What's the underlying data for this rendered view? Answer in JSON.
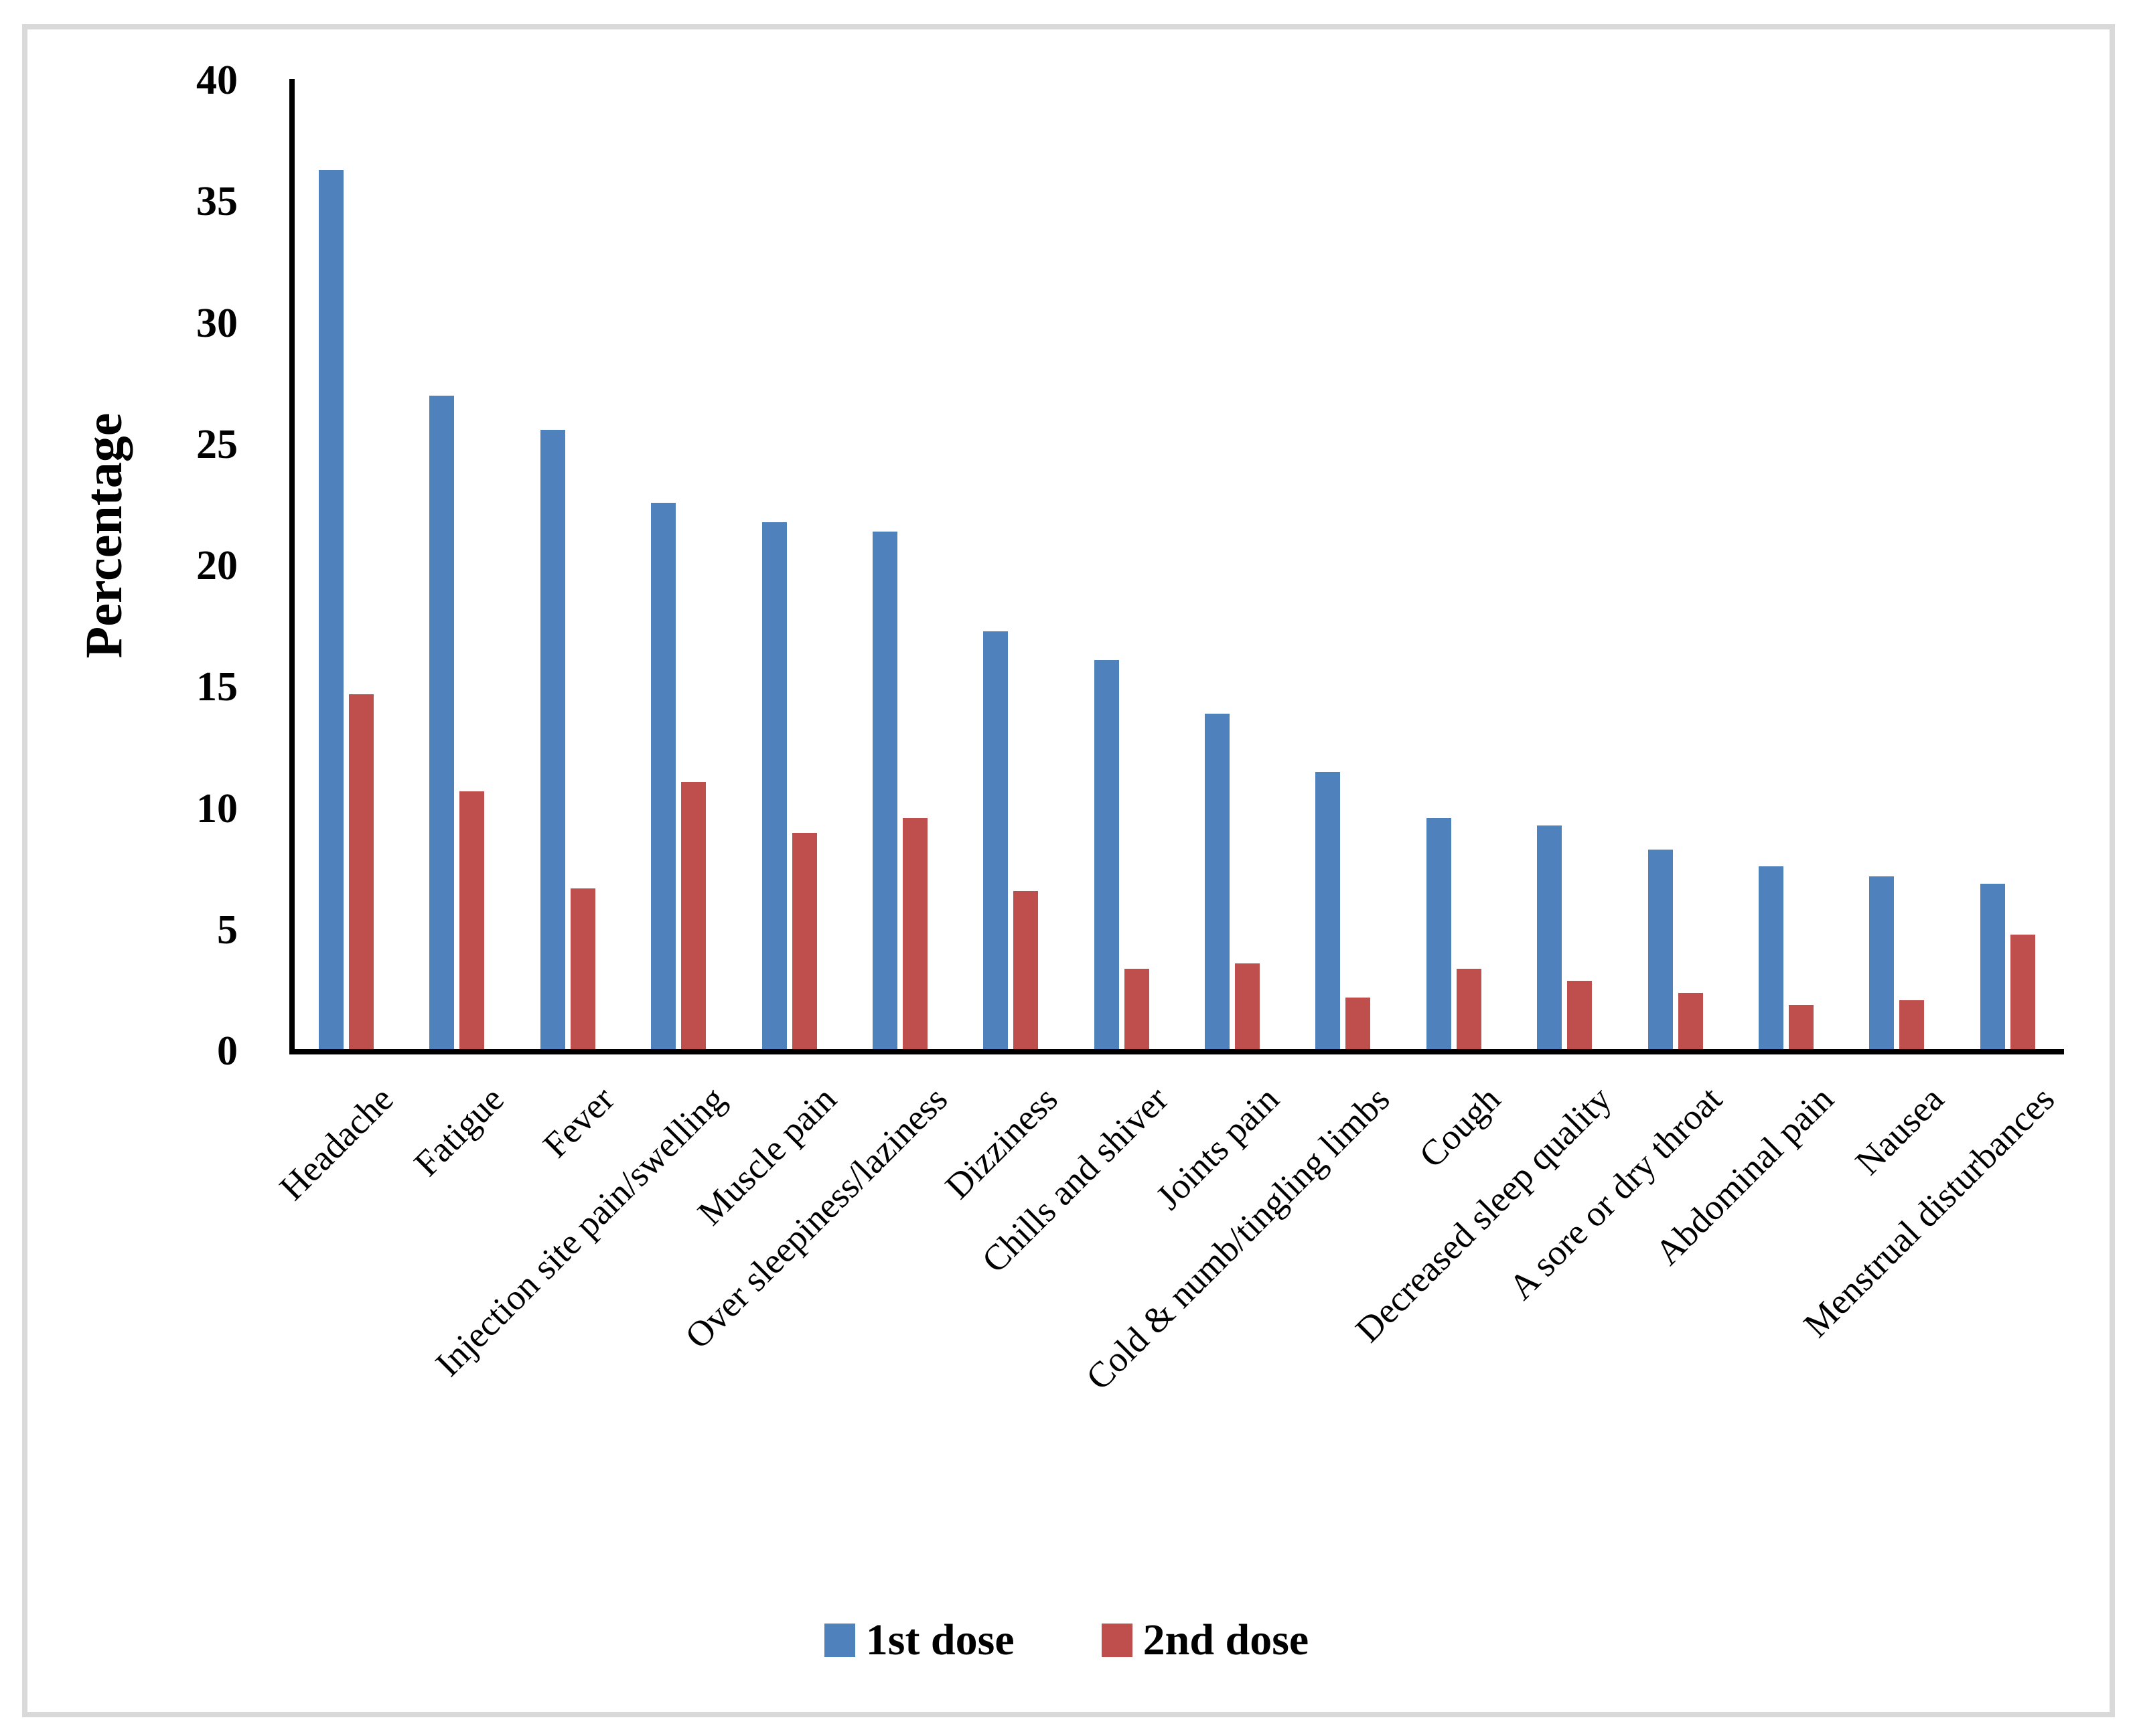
{
  "chart_data": {
    "type": "bar",
    "title": "",
    "xlabel": "",
    "ylabel": "Percentage",
    "ylim": [
      0,
      40
    ],
    "yticks": [
      0,
      5,
      10,
      15,
      20,
      25,
      30,
      35,
      40
    ],
    "grid": false,
    "legend_position": "bottom",
    "categories": [
      "Headache",
      "Fatigue",
      "Fever",
      "Injection site pain/swelling",
      "Muscle pain",
      "Over sleepiness/laziness",
      "Dizziness",
      "Chills and shiver",
      "Joints pain",
      "Cold & numb/tingling limbs",
      "Cough",
      "Decreased sleep quality",
      "A sore or dry throat",
      "Abdominal pain",
      "Nausea",
      "Menstrual disturbances"
    ],
    "series": [
      {
        "name": "1st dose",
        "color": "#4F81BD",
        "values": [
          36.3,
          27.0,
          25.6,
          22.6,
          21.8,
          21.4,
          17.3,
          16.1,
          13.9,
          11.5,
          9.6,
          9.3,
          8.3,
          7.6,
          7.2,
          6.9
        ]
      },
      {
        "name": "2nd dose",
        "color": "#BF4F4D",
        "values": [
          14.7,
          10.7,
          6.7,
          11.1,
          9.0,
          9.6,
          6.6,
          3.4,
          3.6,
          2.2,
          3.4,
          2.9,
          2.4,
          1.9,
          2.1,
          4.8
        ]
      }
    ],
    "axis_color": "#000000"
  }
}
